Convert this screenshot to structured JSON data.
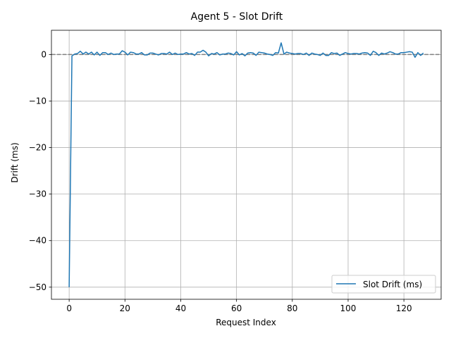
{
  "chart_data": {
    "type": "line",
    "title": "Agent 5 - Slot Drift",
    "xlabel": "Request Index",
    "ylabel": "Drift (ms)",
    "xlim": [
      -6.35,
      133.35
    ],
    "ylim": [
      -52.6,
      5.2
    ],
    "xticks": [
      0,
      20,
      40,
      60,
      80,
      100,
      120
    ],
    "yticks": [
      0,
      -10,
      -20,
      -30,
      -40,
      -50
    ],
    "grid": true,
    "legend_position": "lower-right",
    "reference_line": {
      "y": 0,
      "style": "dashed",
      "color": "#808080"
    },
    "series": [
      {
        "name": "Slot Drift (ms)",
        "color": "#1f77b4",
        "x": [
          0,
          1,
          2,
          3,
          4,
          5,
          6,
          7,
          8,
          9,
          10,
          11,
          12,
          13,
          14,
          15,
          16,
          17,
          18,
          19,
          20,
          21,
          22,
          23,
          24,
          25,
          26,
          27,
          28,
          29,
          30,
          31,
          32,
          33,
          34,
          35,
          36,
          37,
          38,
          39,
          40,
          41,
          42,
          43,
          44,
          45,
          46,
          47,
          48,
          49,
          50,
          51,
          52,
          53,
          54,
          55,
          56,
          57,
          58,
          59,
          60,
          61,
          62,
          63,
          64,
          65,
          66,
          67,
          68,
          69,
          70,
          71,
          72,
          73,
          74,
          75,
          76,
          77,
          78,
          79,
          80,
          81,
          82,
          83,
          84,
          85,
          86,
          87,
          88,
          89,
          90,
          91,
          92,
          93,
          94,
          95,
          96,
          97,
          98,
          99,
          100,
          101,
          102,
          103,
          104,
          105,
          106,
          107,
          108,
          109,
          110,
          111,
          112,
          113,
          114,
          115,
          116,
          117,
          118,
          119,
          120,
          121,
          122,
          123,
          124,
          125,
          126,
          127
        ],
        "values": [
          -50,
          -0.3,
          0.1,
          0.2,
          0.7,
          0.1,
          0.5,
          0.1,
          0.5,
          -0.1,
          0.5,
          -0.2,
          0.4,
          0.4,
          0.0,
          0.3,
          0.0,
          0.1,
          0.1,
          0.8,
          0.5,
          -0.1,
          0.5,
          0.4,
          0.1,
          0.1,
          0.4,
          -0.1,
          -0.1,
          0.3,
          0.3,
          0.1,
          -0.1,
          0.2,
          0.2,
          0.1,
          0.5,
          0.0,
          0.3,
          0.0,
          0.1,
          0.1,
          0.4,
          0.1,
          0.2,
          -0.2,
          0.5,
          0.5,
          0.9,
          0.5,
          -0.3,
          0.2,
          0.1,
          0.4,
          -0.1,
          0.1,
          0.1,
          0.3,
          0.2,
          -0.1,
          0.6,
          -0.1,
          0.2,
          -0.3,
          0.3,
          0.4,
          0.3,
          -0.2,
          0.5,
          0.4,
          0.3,
          0.1,
          0.0,
          -0.2,
          0.4,
          0.3,
          2.5,
          0.1,
          0.5,
          0.3,
          0.2,
          0.1,
          0.2,
          0.2,
          0.0,
          0.3,
          -0.2,
          0.3,
          0.1,
          0.0,
          -0.2,
          0.3,
          -0.2,
          -0.2,
          0.4,
          0.2,
          0.3,
          -0.2,
          0.1,
          0.4,
          0.2,
          0.1,
          0.2,
          0.2,
          0.1,
          0.3,
          0.4,
          0.3,
          -0.2,
          0.7,
          0.4,
          -0.2,
          0.3,
          0.1,
          0.3,
          0.6,
          0.4,
          0.1,
          0.1,
          0.4,
          0.4,
          0.5,
          0.6,
          0.5,
          -0.6,
          0.4,
          -0.2,
          0.3
        ]
      }
    ]
  }
}
